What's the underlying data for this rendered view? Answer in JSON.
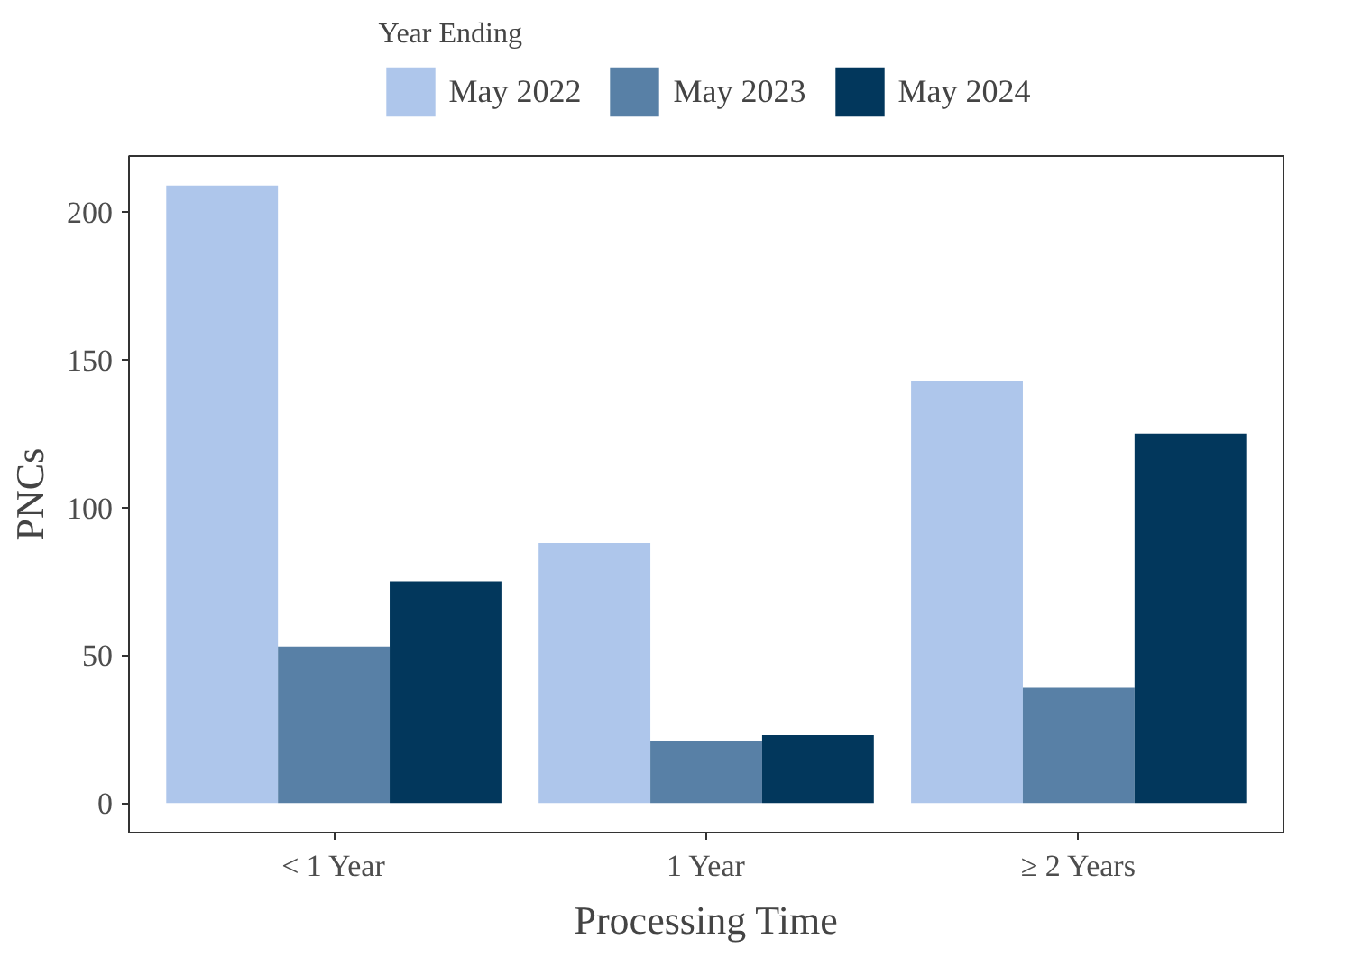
{
  "chart_data": {
    "type": "bar",
    "xlabel": "Processing Time",
    "ylabel": "PNCs",
    "legend_title": "Year Ending",
    "categories": [
      "< 1 Year",
      "1 Year",
      "≥ 2 Years"
    ],
    "series": [
      {
        "name": "May 2022",
        "color": "#aec6eb",
        "values": [
          209,
          88,
          143
        ]
      },
      {
        "name": "May 2023",
        "color": "#5880a6",
        "values": [
          53,
          21,
          39
        ]
      },
      {
        "name": "May 2024",
        "color": "#02375c",
        "values": [
          75,
          23,
          125
        ]
      }
    ],
    "ylim": [
      -10,
      219
    ],
    "yticks": [
      0,
      50,
      100,
      150,
      200
    ],
    "grid": false,
    "legend": "top"
  }
}
